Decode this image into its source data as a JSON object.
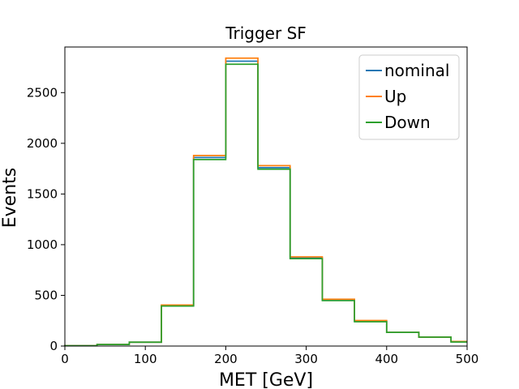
{
  "chart_data": {
    "type": "line",
    "title": "Trigger SF",
    "xlabel": "MET [GeV]",
    "ylabel": "Events",
    "xlim": [
      0,
      500
    ],
    "ylim": [
      0,
      2950
    ],
    "bin_edges": [
      0,
      40,
      80,
      120,
      160,
      200,
      240,
      280,
      320,
      360,
      400,
      440,
      480,
      500
    ],
    "x_ticks": [
      "0",
      "100",
      "200",
      "300",
      "400",
      "500"
    ],
    "x_tick_values": [
      0,
      100,
      200,
      300,
      400,
      500
    ],
    "y_ticks": [
      "0",
      "500",
      "1000",
      "1500",
      "2000",
      "2500"
    ],
    "y_tick_values": [
      0,
      500,
      1000,
      1500,
      2000,
      2500
    ],
    "grid": false,
    "legend_position": "top-right",
    "series": [
      {
        "name": "nominal",
        "color": "#1f77b4",
        "values": [
          3,
          15,
          38,
          400,
          1860,
          2810,
          1760,
          870,
          455,
          245,
          135,
          88,
          42
        ]
      },
      {
        "name": "Up",
        "color": "#ff7f0e",
        "values": [
          3,
          15,
          38,
          405,
          1880,
          2840,
          1780,
          880,
          462,
          252,
          135,
          88,
          45
        ]
      },
      {
        "name": "Down",
        "color": "#2ca02c",
        "values": [
          3,
          15,
          38,
          395,
          1840,
          2780,
          1745,
          862,
          448,
          240,
          135,
          88,
          40
        ]
      }
    ]
  }
}
